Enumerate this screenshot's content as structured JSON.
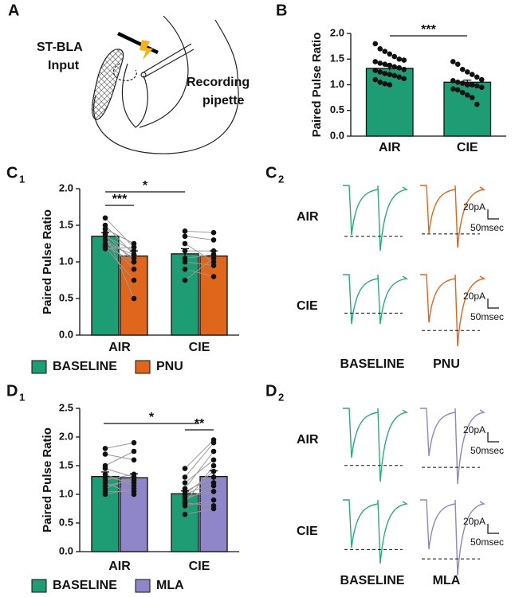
{
  "panels": {
    "A": {
      "letter": "A",
      "stimulus_label": [
        "ST-BLA",
        "Input"
      ],
      "pipette_label": [
        "Recording",
        "pipette"
      ]
    },
    "B": {
      "letter": "B"
    },
    "C1": {
      "letter": "C",
      "sub": "1"
    },
    "C2": {
      "letter": "C",
      "sub": "2",
      "rows": [
        {
          "name": "AIR",
          "scale_amplitude": "20pA",
          "scale_time": "50msec"
        },
        {
          "name": "CIE",
          "scale_amplitude": "20pA",
          "scale_time": "50msec"
        }
      ],
      "columns": [
        "BASELINE",
        "PNU"
      ]
    },
    "D1": {
      "letter": "D",
      "sub": "1"
    },
    "D2": {
      "letter": "D",
      "sub": "2",
      "rows": [
        {
          "name": "AIR",
          "scale_amplitude": "20pA",
          "scale_time": "50msec"
        },
        {
          "name": "CIE",
          "scale_amplitude": "20pA",
          "scale_time": "50msec"
        }
      ],
      "columns": [
        "BASELINE",
        "MLA"
      ]
    }
  },
  "chart_data": [
    {
      "type": "bar",
      "ylabel": "Paired Pulse Ratio",
      "categories": [
        "AIR",
        "CIE"
      ],
      "color": "#1e9c74",
      "values": [
        1.32,
        1.05
      ],
      "errors": [
        0.04,
        0.04
      ],
      "points": [
        [
          1.8,
          1.7,
          1.65,
          1.6,
          1.55,
          1.5,
          1.48,
          1.45,
          1.42,
          1.4,
          1.38,
          1.35,
          1.33,
          1.3,
          1.28,
          1.25,
          1.22,
          1.2,
          1.18,
          1.15,
          1.12,
          1.1,
          1.05,
          1.02,
          1.0
        ],
        [
          1.45,
          1.4,
          1.3,
          1.25,
          1.2,
          1.15,
          1.1,
          1.08,
          1.05,
          1.03,
          1.0,
          1.0,
          0.98,
          0.95,
          0.92,
          0.9,
          0.85,
          0.8,
          0.75,
          0.62
        ]
      ],
      "ylim": [
        0,
        2
      ],
      "yticks": [
        {
          "value": 0,
          "label": "0.0"
        },
        0.5,
        {
          "value": 1,
          "label": "1.0"
        },
        1.5,
        {
          "value": 2,
          "label": "2.0"
        }
      ],
      "annotations": [
        "***"
      ]
    },
    {
      "type": "grouped-bar",
      "ylabel": "Paired Pulse Ratio",
      "categories": [
        "AIR",
        "CIE"
      ],
      "series": [
        {
          "name": "BASELINE",
          "color": "#1e9c74",
          "values": [
            1.35,
            1.11
          ],
          "errors": [
            0.05,
            0.07
          ],
          "points": [
            [
              1.6,
              1.5,
              1.45,
              1.4,
              1.38,
              1.35,
              1.3,
              1.3,
              1.25,
              1.22,
              1.2,
              1.18
            ],
            [
              1.42,
              1.35,
              1.25,
              1.15,
              1.05,
              1.0,
              0.9,
              0.75
            ]
          ]
        },
        {
          "name": "PNU",
          "color": "#e0661c",
          "values": [
            1.08,
            1.08
          ],
          "errors": [
            0.07,
            0.07
          ],
          "points": [
            [
              1.2,
              1.1,
              1.25,
              0.5,
              1.0,
              1.15,
              1.05,
              0.9,
              1.1,
              1.0,
              0.75,
              1.2
            ],
            [
              1.4,
              1.3,
              1.0,
              1.15,
              1.1,
              0.95,
              0.8,
              1.05
            ]
          ]
        }
      ],
      "ylim": [
        0,
        2
      ],
      "yticks": [
        {
          "value": 0,
          "label": "0.0"
        },
        0.5,
        {
          "value": 1,
          "label": "1.0"
        },
        1.5,
        {
          "value": 2,
          "label": "2.0"
        }
      ],
      "annotations": [
        "*",
        "***"
      ]
    },
    {
      "type": "grouped-bar",
      "ylabel": "Paired Pulse Ratio",
      "categories": [
        "AIR",
        "CIE"
      ],
      "series": [
        {
          "name": "BASELINE",
          "color": "#1e9c74",
          "values": [
            1.31,
            1.01
          ],
          "errors": [
            0.08,
            0.05
          ],
          "points": [
            [
              1.8,
              1.7,
              1.5,
              1.45,
              1.35,
              1.3,
              1.25,
              1.2,
              1.1,
              1.05,
              1.0,
              1.15
            ],
            [
              1.45,
              1.3,
              1.2,
              1.1,
              1.05,
              1.0,
              1.0,
              0.95,
              0.9,
              0.85,
              0.8,
              0.65,
              0.85
            ]
          ]
        },
        {
          "name": "MLA",
          "color": "#8e86c8",
          "values": [
            1.29,
            1.31
          ],
          "errors": [
            0.07,
            0.1
          ],
          "points": [
            [
              1.9,
              1.6,
              1.75,
              1.3,
              1.15,
              1.2,
              1.35,
              1.0,
              1.3,
              1.05,
              1.1,
              1.25
            ],
            [
              1.95,
              1.9,
              1.6,
              1.75,
              1.3,
              1.2,
              1.4,
              1.05,
              1.15,
              0.8,
              0.9,
              0.75,
              1.5
            ]
          ]
        }
      ],
      "ylim": [
        0,
        2.5
      ],
      "yticks": [
        {
          "value": 0,
          "label": "0.0"
        },
        0.5,
        {
          "value": 1,
          "label": "1.0"
        },
        1.5,
        {
          "value": 2,
          "label": "2.0"
        },
        2.5
      ],
      "annotations": [
        "*",
        "**"
      ]
    }
  ]
}
